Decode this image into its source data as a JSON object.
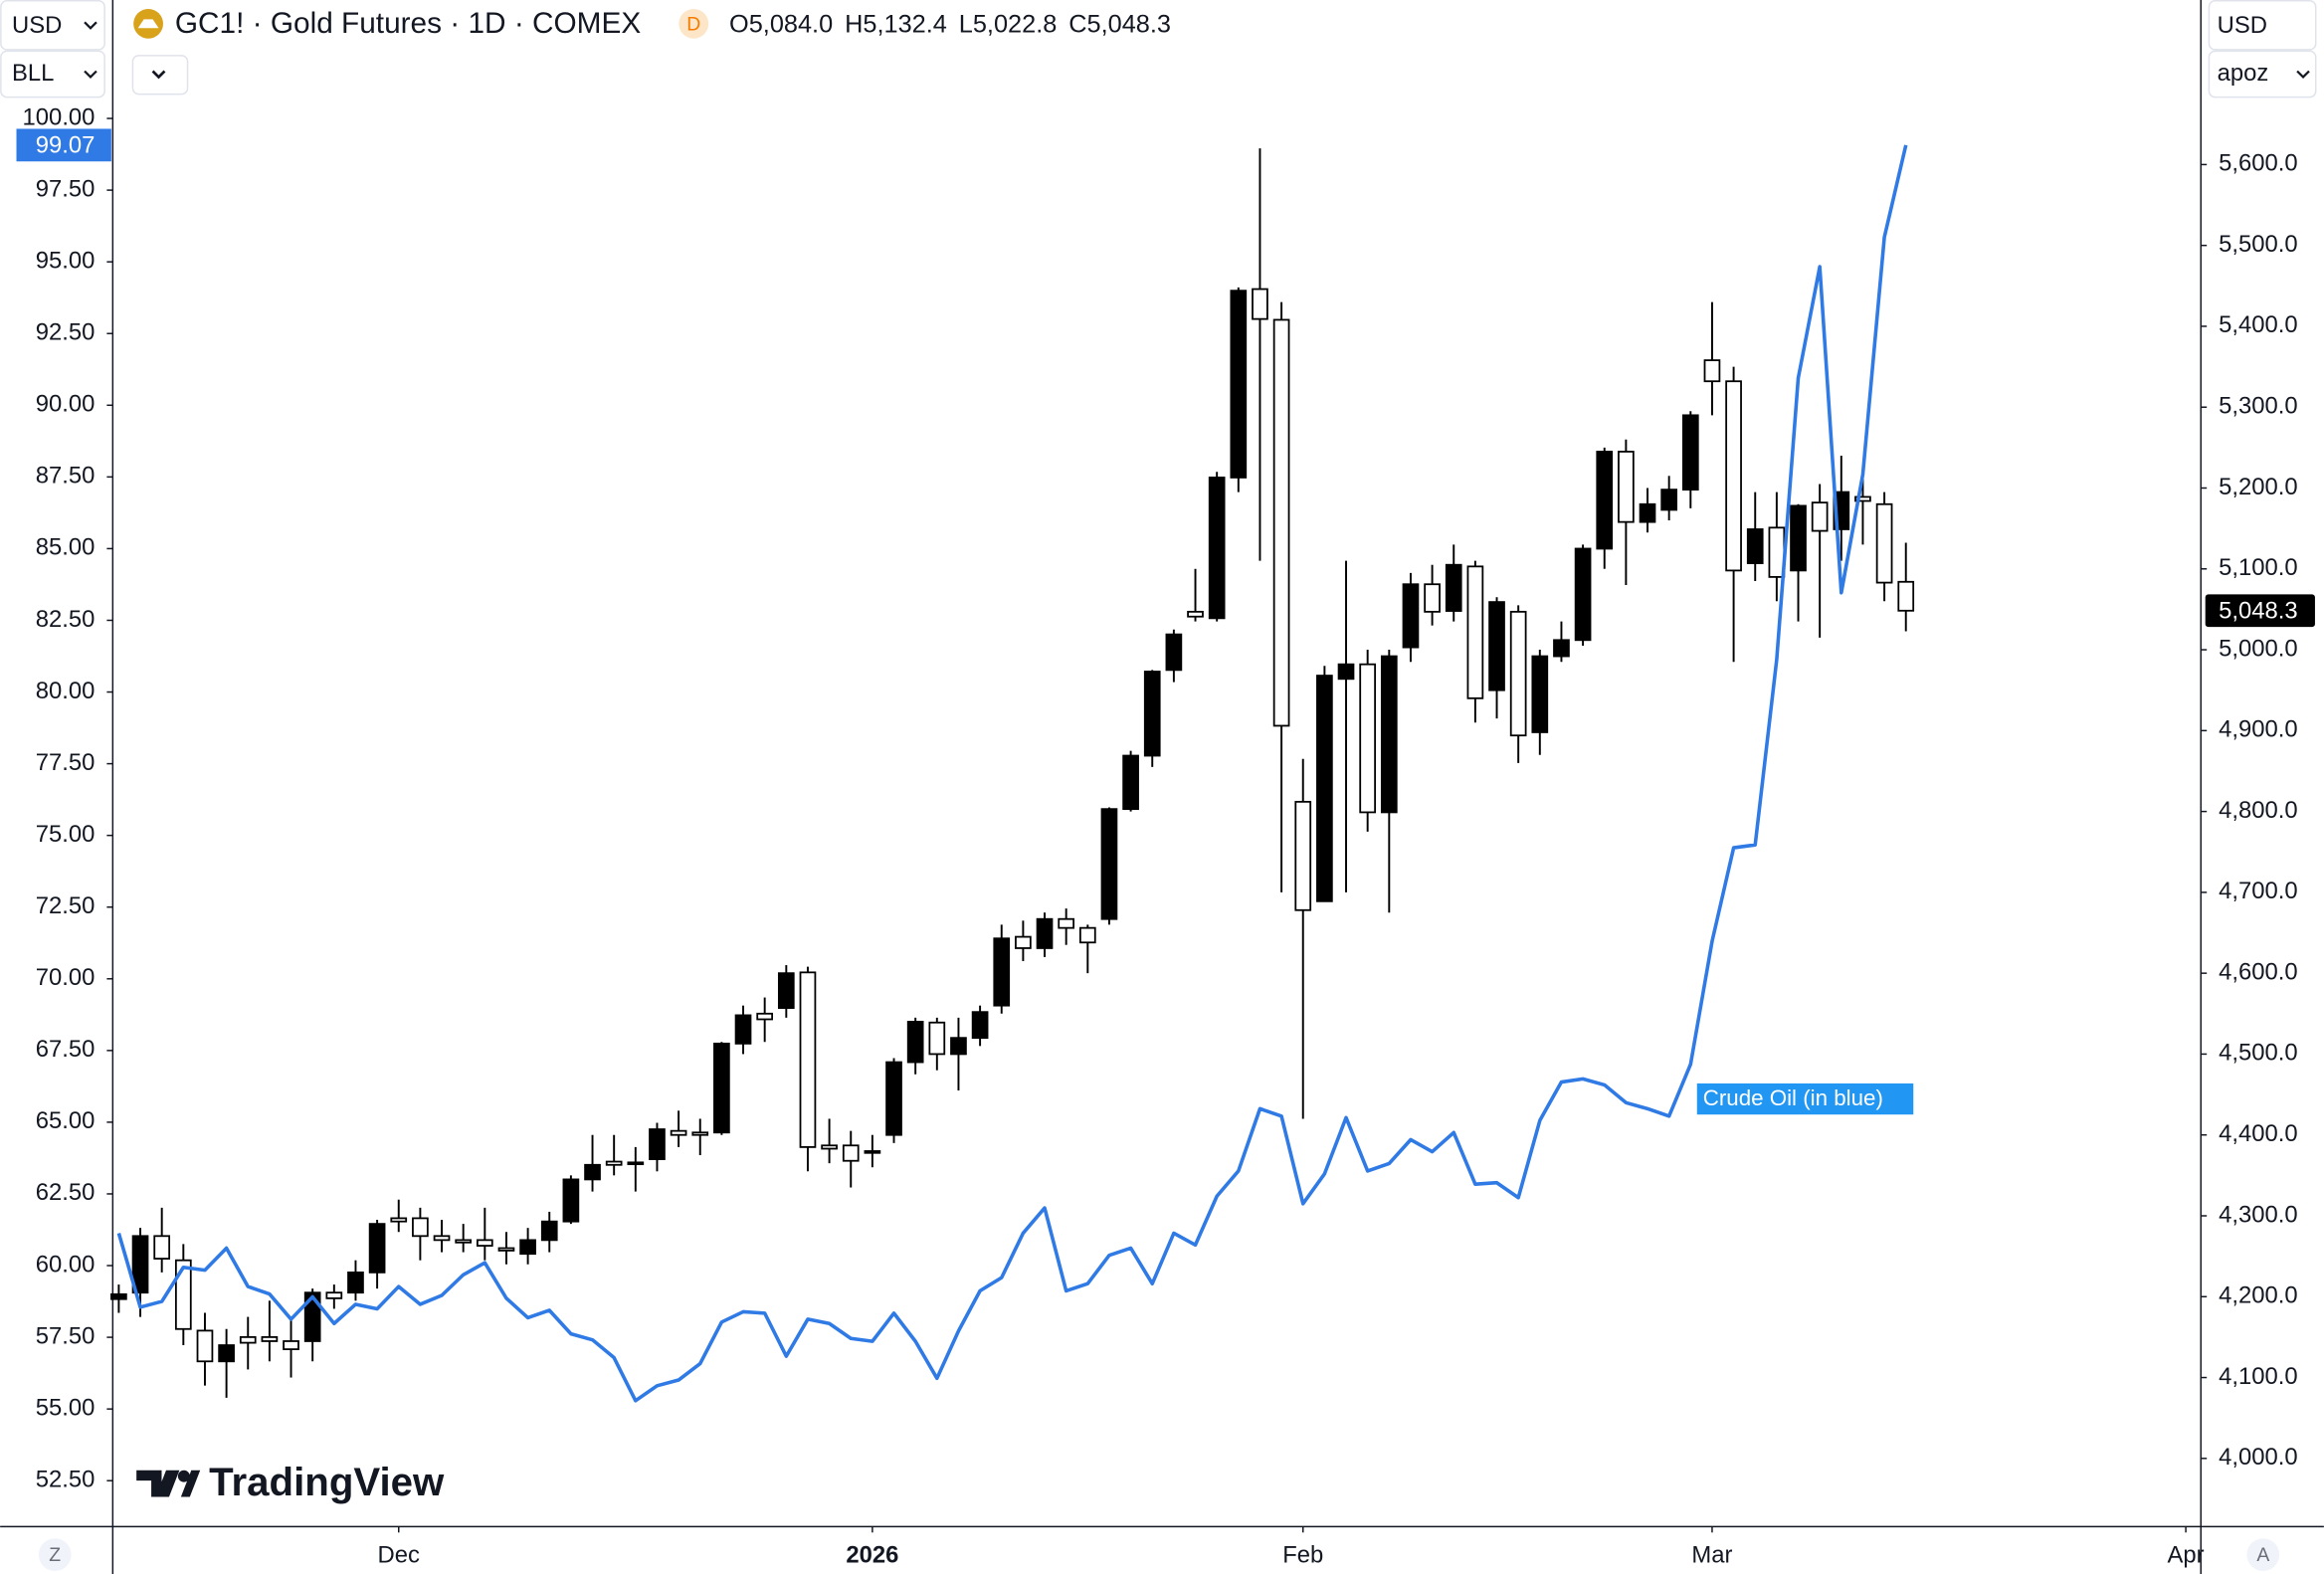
{
  "ui": {
    "currency_left": "USD",
    "unit_left": "BLL",
    "currency_right": "USD",
    "unit_right": "apoz",
    "left_button": "Z",
    "right_button": "A",
    "logo": "TradingView"
  },
  "chart_data": [
    {
      "type": "candlestick",
      "title": "GC1! · Gold Futures · 1D · COMEX",
      "badge": "D",
      "ohlc": [
        {
          "key": "O",
          "value": "5,084.0"
        },
        {
          "key": "H",
          "value": "5,132.4"
        },
        {
          "key": "L",
          "value": "5,022.8"
        },
        {
          "key": "C",
          "value": "5,048.3"
        }
      ],
      "axis_side": "right",
      "up_color": "#000000",
      "down_color": "#ffffff",
      "xlim": [
        -0.28,
        96.7
      ],
      "xticks": [
        {
          "value": 13,
          "label": "Dec"
        },
        {
          "value": 35,
          "label": "2026"
        },
        {
          "value": 55,
          "label": "Feb"
        },
        {
          "value": 74,
          "label": "Mar"
        },
        {
          "value": 96,
          "label": "Apr"
        }
      ],
      "ylim": [
        3915.7,
        5803.5
      ],
      "yticks": [
        {
          "value": 4000,
          "label": "4,000.0"
        },
        {
          "value": 4100,
          "label": "4,100.0"
        },
        {
          "value": 4200,
          "label": "4,200.0"
        },
        {
          "value": 4300,
          "label": "4,300.0"
        },
        {
          "value": 4400,
          "label": "4,400.0"
        },
        {
          "value": 4500,
          "label": "4,500.0"
        },
        {
          "value": 4600,
          "label": "4,600.0"
        },
        {
          "value": 4700,
          "label": "4,700.0"
        },
        {
          "value": 4800,
          "label": "4,800.0"
        },
        {
          "value": 4900,
          "label": "4,900.0"
        },
        {
          "value": 5000,
          "label": "5,000.0"
        },
        {
          "value": 5100,
          "label": "5,100.0"
        },
        {
          "value": 5200,
          "label": "5,200.0"
        },
        {
          "value": 5300,
          "label": "5,300.0"
        },
        {
          "value": 5400,
          "label": "5,400.0"
        },
        {
          "value": 5500,
          "label": "5,500.0"
        },
        {
          "value": 5600,
          "label": "5,600.0"
        }
      ],
      "open": [
        4197,
        4205,
        4275,
        4245,
        4158,
        4120,
        4150,
        4150,
        4145,
        4145,
        4205,
        4205,
        4230,
        4297,
        4297,
        4275,
        4270,
        4270,
        4260,
        4253,
        4270,
        4293,
        4345,
        4367,
        4366,
        4370,
        4405,
        4403,
        4403,
        4513,
        4550,
        4557,
        4601,
        4387,
        4387,
        4380,
        4400,
        4490,
        4539,
        4500,
        4520,
        4560,
        4645,
        4631,
        4667,
        4656,
        4667,
        4803,
        4869,
        4975,
        5047,
        5039,
        5213,
        5446,
        5408,
        4812,
        4689,
        4964,
        4982,
        4799,
        5003,
        5081,
        5048,
        5103,
        4950,
        5047,
        4898,
        4992,
        5012,
        5125,
        5245,
        5158,
        5173,
        5198,
        5358,
        5332,
        5107,
        5151,
        5098,
        5182,
        5149,
        5189,
        5180,
        5084
      ],
      "high": [
        4215,
        4285,
        4310,
        4265,
        4180,
        4160,
        4175,
        4195,
        4175,
        4210,
        4215,
        4245,
        4295,
        4320,
        4310,
        4295,
        4290,
        4310,
        4280,
        4285,
        4305,
        4350,
        4400,
        4400,
        4385,
        4415,
        4430,
        4420,
        4515,
        4560,
        4570,
        4610,
        4608,
        4420,
        4405,
        4400,
        4495,
        4545,
        4545,
        4545,
        4560,
        4660,
        4665,
        4675,
        4680,
        4660,
        4805,
        4875,
        4975,
        5025,
        5100,
        5220,
        5448,
        5620,
        5430,
        4865,
        4980,
        5110,
        5000,
        5000,
        5095,
        5105,
        5130,
        5110,
        5065,
        5055,
        5000,
        5035,
        5130,
        5250,
        5260,
        5200,
        5215,
        5295,
        5430,
        5350,
        5195,
        5195,
        5180,
        5205,
        5240,
        5220,
        5195,
        5132.4
      ],
      "low": [
        4180,
        4175,
        4230,
        4140,
        4090,
        4075,
        4110,
        4120,
        4100,
        4120,
        4185,
        4195,
        4210,
        4280,
        4245,
        4255,
        4255,
        4245,
        4240,
        4240,
        4255,
        4290,
        4330,
        4350,
        4330,
        4355,
        4385,
        4375,
        4400,
        4500,
        4515,
        4545,
        4355,
        4365,
        4335,
        4360,
        4390,
        4475,
        4480,
        4455,
        4510,
        4550,
        4615,
        4620,
        4635,
        4600,
        4660,
        4800,
        4855,
        4960,
        5035,
        5035,
        5195,
        5110,
        4700,
        4420,
        4690,
        4700,
        4775,
        4675,
        4985,
        5030,
        5035,
        4910,
        4915,
        4860,
        4870,
        4985,
        5005,
        5100,
        5080,
        5145,
        5160,
        5175,
        5290,
        4985,
        5085,
        5060,
        5035,
        5015,
        5110,
        5130,
        5060,
        5022.8
      ],
      "close": [
        4203,
        4275,
        4247,
        4160,
        4120,
        4140,
        4143,
        4145,
        4135,
        4205,
        4198,
        4230,
        4290,
        4293,
        4275,
        4270,
        4267,
        4263,
        4257,
        4270,
        4293,
        4345,
        4363,
        4363,
        4364,
        4407,
        4400,
        4400,
        4513,
        4548,
        4543,
        4600,
        4385,
        4383,
        4368,
        4378,
        4490,
        4540,
        4500,
        4520,
        4552,
        4643,
        4631,
        4667,
        4656,
        4638,
        4803,
        4869,
        4973,
        5019,
        5041,
        5213,
        5444,
        5409,
        4906,
        4678,
        4968,
        4982,
        4799,
        4992,
        5081,
        5047,
        5105,
        4940,
        5059,
        4894,
        4992,
        5012,
        5125,
        5245,
        5158,
        5180,
        5198,
        5290,
        5332,
        5098,
        5149,
        5090,
        5178,
        5147,
        5195,
        5184,
        5083,
        5048.3
      ],
      "last_value_label": "5,048.3",
      "last_label_color": "#000000"
    },
    {
      "type": "line",
      "axis_side": "left",
      "color": "#2f7ae5",
      "annotation": "Crude Oil (in blue)",
      "ylim": [
        50.9,
        104.13
      ],
      "yticks": [
        {
          "value": 52.5,
          "label": "52.50"
        },
        {
          "value": 55,
          "label": "55.00"
        },
        {
          "value": 57.5,
          "label": "57.50"
        },
        {
          "value": 60,
          "label": "60.00"
        },
        {
          "value": 62.5,
          "label": "62.50"
        },
        {
          "value": 65,
          "label": "65.00"
        },
        {
          "value": 67.5,
          "label": "67.50"
        },
        {
          "value": 70,
          "label": "70.00"
        },
        {
          "value": 72.5,
          "label": "72.50"
        },
        {
          "value": 75,
          "label": "75.00"
        },
        {
          "value": 77.5,
          "label": "77.50"
        },
        {
          "value": 80,
          "label": "80.00"
        },
        {
          "value": 82.5,
          "label": "82.50"
        },
        {
          "value": 85,
          "label": "85.00"
        },
        {
          "value": 87.5,
          "label": "87.50"
        },
        {
          "value": 90,
          "label": "90.00"
        },
        {
          "value": 92.5,
          "label": "92.50"
        },
        {
          "value": 95,
          "label": "95.00"
        },
        {
          "value": 97.5,
          "label": "97.50"
        },
        {
          "value": 100,
          "label": "100.00"
        }
      ],
      "values": [
        61.13,
        58.55,
        58.75,
        59.94,
        59.84,
        60.61,
        59.27,
        59.01,
        58.13,
        58.91,
        57.98,
        58.65,
        58.49,
        59.27,
        58.65,
        58.96,
        59.68,
        60.1,
        58.86,
        58.18,
        58.44,
        57.62,
        57.41,
        56.79,
        55.29,
        55.81,
        56.01,
        56.58,
        58.03,
        58.39,
        58.34,
        56.84,
        58.13,
        57.98,
        57.46,
        57.36,
        58.34,
        57.36,
        56.07,
        57.72,
        59.12,
        59.58,
        61.13,
        62.01,
        59.12,
        59.37,
        60.36,
        60.61,
        59.37,
        61.13,
        60.72,
        62.42,
        63.3,
        65.47,
        65.21,
        62.16,
        63.2,
        65.16,
        63.3,
        63.56,
        64.39,
        63.97,
        64.64,
        62.84,
        62.89,
        62.37,
        65.06,
        66.4,
        66.51,
        66.3,
        65.68,
        65.47,
        65.21,
        67.02,
        71.31,
        74.57,
        74.67,
        81.13,
        90.95,
        94.83,
        83.46,
        87.59,
        95.86,
        99.07
      ],
      "last_value_label": "99.07"
    }
  ]
}
